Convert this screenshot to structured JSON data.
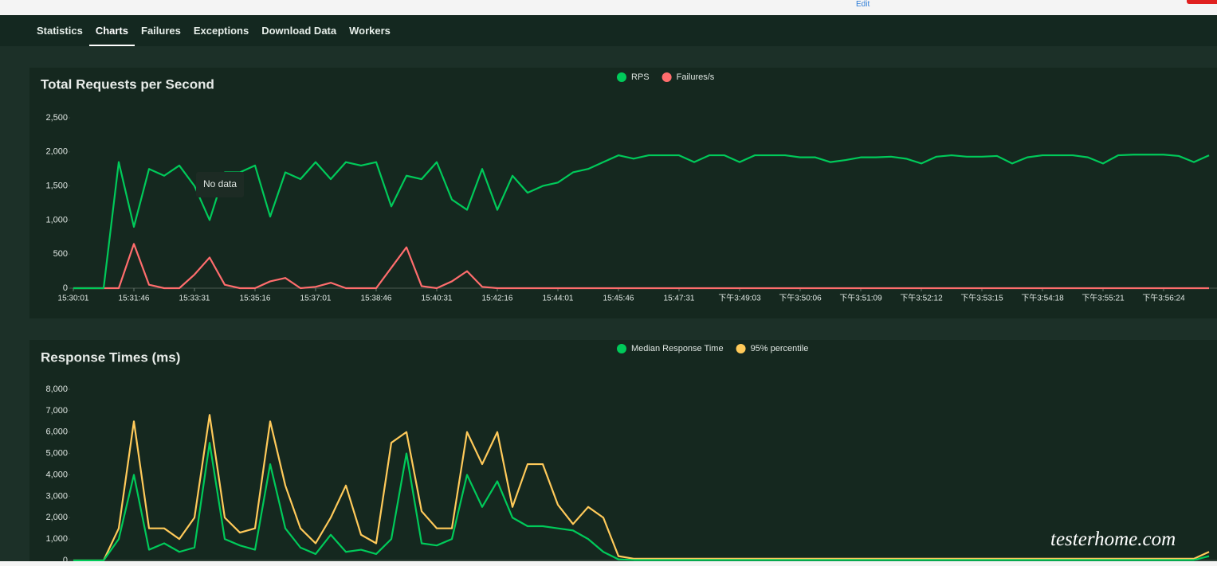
{
  "top_link": "Edit",
  "nav": {
    "items": [
      "Statistics",
      "Charts",
      "Failures",
      "Exceptions",
      "Download Data",
      "Workers"
    ],
    "active": 1
  },
  "tooltip": "No data",
  "watermark": "testerhome.com",
  "chart_data": [
    {
      "type": "line",
      "title": "Total Requests per Second",
      "categories": [
        "15:30:01",
        null,
        null,
        null,
        "15:31:46",
        null,
        null,
        null,
        "15:33:31",
        null,
        null,
        null,
        "15:35:16",
        null,
        null,
        null,
        "15:37:01",
        null,
        null,
        null,
        "15:38:46",
        null,
        null,
        null,
        "15:40:31",
        null,
        null,
        null,
        "15:42:16",
        null,
        null,
        null,
        "15:44:01",
        null,
        null,
        null,
        "15:45:46",
        null,
        null,
        null,
        "15:47:31",
        null,
        null,
        null,
        "下午3:49:03",
        null,
        null,
        null,
        "下午3:50:06",
        null,
        null,
        null,
        "下午3:51:09",
        null,
        null,
        null,
        "下午3:52:12",
        null,
        null,
        null,
        "下午3:53:15",
        null,
        null,
        null,
        "下午3:54:18",
        null,
        null,
        null,
        "下午3:55:21",
        null,
        null,
        null,
        "下午3:56:24",
        null,
        null,
        null
      ],
      "series": [
        {
          "name": "RPS",
          "color": "#00ca5a",
          "values": [
            0,
            0,
            0,
            1850,
            900,
            1750,
            1650,
            1800,
            1500,
            1000,
            1700,
            1700,
            1800,
            1050,
            1700,
            1600,
            1850,
            1600,
            1850,
            1800,
            1850,
            1200,
            1650,
            1600,
            1850,
            1300,
            1150,
            1750,
            1150,
            1650,
            1400,
            1500,
            1550,
            1700,
            1750,
            1850,
            1950,
            1900,
            1950,
            1950,
            1950,
            1850,
            1950,
            1950,
            1850,
            1950,
            1950,
            1950,
            1920,
            1920,
            1850,
            1880,
            1920,
            1920,
            1930,
            1900,
            1830,
            1930,
            1950,
            1930,
            1930,
            1940,
            1830,
            1920,
            1950,
            1950,
            1950,
            1920,
            1830,
            1950,
            1960,
            1960,
            1960,
            1940,
            1850,
            1950
          ]
        },
        {
          "name": "Failures/s",
          "color": "#ff6d6d",
          "values": [
            0,
            0,
            0,
            0,
            650,
            50,
            0,
            0,
            200,
            450,
            50,
            0,
            0,
            100,
            150,
            0,
            20,
            80,
            0,
            0,
            0,
            300,
            600,
            30,
            0,
            100,
            250,
            20,
            0,
            0,
            0,
            0,
            0,
            0,
            0,
            0,
            0,
            0,
            0,
            0,
            0,
            0,
            0,
            0,
            0,
            0,
            0,
            0,
            0,
            0,
            0,
            0,
            0,
            0,
            0,
            0,
            0,
            0,
            0,
            0,
            0,
            0,
            0,
            0,
            0,
            0,
            0,
            0,
            0,
            0,
            0,
            0,
            0,
            0,
            0,
            0
          ]
        }
      ],
      "ylim": [
        0,
        2500
      ],
      "yticks": [
        0,
        500,
        {
          "value": 1000,
          "label": "1,000"
        },
        {
          "value": 1500,
          "label": "1,500"
        },
        {
          "value": 2000,
          "label": "2,000"
        },
        {
          "value": 2500,
          "label": "2,500"
        }
      ],
      "grid": false
    },
    {
      "type": "line",
      "title": "Response Times (ms)",
      "series": [
        {
          "name": "Median Response Time",
          "color": "#00ca5a",
          "values": [
            0,
            0,
            0,
            1000,
            4000,
            500,
            800,
            400,
            600,
            5500,
            1000,
            700,
            500,
            4500,
            1500,
            600,
            300,
            1200,
            400,
            500,
            300,
            1000,
            5000,
            800,
            700,
            1000,
            4000,
            2500,
            3700,
            2000,
            1600,
            1600,
            1500,
            1400,
            1000,
            400,
            50,
            20,
            20,
            20,
            20,
            20,
            20,
            20,
            20,
            20,
            20,
            20,
            20,
            20,
            20,
            20,
            20,
            20,
            20,
            20,
            20,
            20,
            20,
            20,
            20,
            20,
            20,
            20,
            20,
            20,
            20,
            20,
            20,
            20,
            20,
            20,
            20,
            20,
            20,
            200
          ]
        },
        {
          "name": "95% percentile",
          "color": "#ffca5a",
          "values": [
            0,
            0,
            0,
            1500,
            6500,
            1500,
            1500,
            1000,
            2000,
            6800,
            2000,
            1300,
            1500,
            6500,
            3500,
            1500,
            800,
            2000,
            3500,
            1200,
            800,
            5500,
            6000,
            2300,
            1500,
            1500,
            6000,
            4500,
            6000,
            2500,
            4500,
            4500,
            2600,
            1700,
            2500,
            2000,
            200,
            80,
            80,
            80,
            80,
            80,
            80,
            80,
            80,
            80,
            80,
            80,
            80,
            80,
            80,
            80,
            80,
            80,
            80,
            80,
            80,
            80,
            80,
            80,
            80,
            80,
            80,
            80,
            80,
            80,
            80,
            80,
            80,
            80,
            80,
            80,
            80,
            80,
            80,
            400
          ]
        }
      ],
      "ylim": [
        0,
        8000
      ],
      "yticks": [
        0,
        {
          "value": 1000,
          "label": "1,000"
        },
        {
          "value": 2000,
          "label": "2,000"
        },
        {
          "value": 3000,
          "label": "3,000"
        },
        {
          "value": 4000,
          "label": "4,000"
        },
        {
          "value": 5000,
          "label": "5,000"
        },
        {
          "value": 6000,
          "label": "6,000"
        },
        {
          "value": 7000,
          "label": "7,000"
        },
        {
          "value": 8000,
          "label": "8,000"
        }
      ],
      "grid": false
    }
  ]
}
